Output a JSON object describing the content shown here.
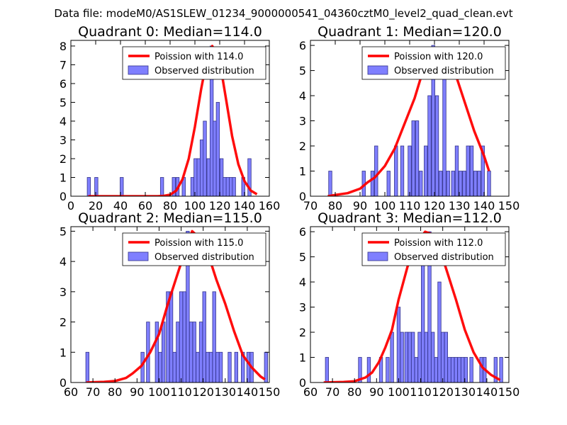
{
  "suptitle": "Data file: modeM0/AS1SLEW_01234_9000000541_04360cztM0_level2_quad_clean.evt",
  "colors": {
    "bar_fill": "#7f7fff",
    "bar_edge": "#33338a",
    "line": "#ff0000"
  },
  "chart_data": [
    {
      "type": "bar",
      "title": "Quadrant 0: Median=114.0",
      "xlim": [
        0,
        160
      ],
      "ylim": [
        0,
        8.3
      ],
      "xticks": [
        0,
        20,
        40,
        60,
        80,
        100,
        120,
        140,
        160
      ],
      "yticks": [
        0,
        1,
        2,
        3,
        4,
        5,
        6,
        7,
        8
      ],
      "legend": {
        "line": "Poission with 114.0",
        "bars": "Observed distribution",
        "position": "top-right"
      },
      "bin_width": 2.6,
      "bins": [
        {
          "x": 14.5,
          "count": 1
        },
        {
          "x": 20.5,
          "count": 1
        },
        {
          "x": 41,
          "count": 1
        },
        {
          "x": 73.5,
          "count": 1
        },
        {
          "x": 83,
          "count": 1
        },
        {
          "x": 86,
          "count": 1
        },
        {
          "x": 91,
          "count": 1
        },
        {
          "x": 98,
          "count": 1
        },
        {
          "x": 100.5,
          "count": 2
        },
        {
          "x": 103,
          "count": 2
        },
        {
          "x": 105.5,
          "count": 3
        },
        {
          "x": 108,
          "count": 4
        },
        {
          "x": 111,
          "count": 2
        },
        {
          "x": 113.5,
          "count": 8
        },
        {
          "x": 116,
          "count": 4
        },
        {
          "x": 118.5,
          "count": 5
        },
        {
          "x": 121.5,
          "count": 2
        },
        {
          "x": 124,
          "count": 1
        },
        {
          "x": 126.5,
          "count": 1
        },
        {
          "x": 129,
          "count": 1
        },
        {
          "x": 131.5,
          "count": 1
        },
        {
          "x": 139,
          "count": 1
        },
        {
          "x": 144,
          "count": 2
        }
      ],
      "poisson": {
        "x": [
          14,
          40,
          70,
          75,
          80,
          85,
          90,
          95,
          100,
          105,
          110,
          114,
          120,
          125,
          130,
          135,
          140,
          145,
          150
        ],
        "y": [
          0,
          0,
          0,
          0.02,
          0.08,
          0.3,
          0.9,
          2,
          3.7,
          5.7,
          7.4,
          8,
          7.2,
          5.2,
          3.2,
          1.7,
          0.8,
          0.3,
          0.1
        ]
      }
    },
    {
      "type": "bar",
      "title": "Quadrant 1: Median=120.0",
      "xlim": [
        70,
        150
      ],
      "ylim": [
        0,
        6.2
      ],
      "xticks": [
        70,
        80,
        90,
        100,
        110,
        120,
        130,
        140,
        150
      ],
      "yticks": [
        0,
        1,
        2,
        3,
        4,
        5,
        6
      ],
      "legend": {
        "line": "Poission with 120.0",
        "bars": "Observed distribution",
        "position": "top-right"
      },
      "bin_width": 1.3,
      "bins": [
        {
          "x": 78,
          "count": 1
        },
        {
          "x": 91.5,
          "count": 1
        },
        {
          "x": 95,
          "count": 1
        },
        {
          "x": 96.5,
          "count": 2
        },
        {
          "x": 101.5,
          "count": 1
        },
        {
          "x": 104.5,
          "count": 2
        },
        {
          "x": 107,
          "count": 2
        },
        {
          "x": 110,
          "count": 2
        },
        {
          "x": 111.5,
          "count": 3
        },
        {
          "x": 113,
          "count": 3
        },
        {
          "x": 114.5,
          "count": 1
        },
        {
          "x": 116.5,
          "count": 2
        },
        {
          "x": 118,
          "count": 4
        },
        {
          "x": 119.5,
          "count": 6
        },
        {
          "x": 121,
          "count": 4
        },
        {
          "x": 122.5,
          "count": 1
        },
        {
          "x": 124,
          "count": 5
        },
        {
          "x": 125.5,
          "count": 1
        },
        {
          "x": 127.5,
          "count": 1
        },
        {
          "x": 129,
          "count": 2
        },
        {
          "x": 130.5,
          "count": 1
        },
        {
          "x": 132,
          "count": 1
        },
        {
          "x": 133.5,
          "count": 2
        },
        {
          "x": 135,
          "count": 2
        },
        {
          "x": 136.5,
          "count": 1
        },
        {
          "x": 138,
          "count": 1
        },
        {
          "x": 139.5,
          "count": 2
        },
        {
          "x": 142,
          "count": 1
        }
      ],
      "poisson": {
        "x": [
          77,
          80,
          85,
          90,
          93,
          96,
          100,
          104,
          108,
          112,
          116,
          120,
          124,
          128,
          132,
          136,
          140,
          142
        ],
        "y": [
          0,
          0.05,
          0.12,
          0.3,
          0.55,
          0.75,
          1.2,
          1.9,
          2.9,
          3.9,
          5.2,
          5.9,
          5.8,
          5.0,
          3.8,
          2.6,
          1.6,
          1.0
        ]
      }
    },
    {
      "type": "bar",
      "title": "Quadrant 2: Median=115.0",
      "xlim": [
        60,
        150
      ],
      "ylim": [
        0,
        5.15
      ],
      "xticks": [
        60,
        70,
        80,
        90,
        100,
        110,
        120,
        130,
        140,
        150
      ],
      "yticks": [
        0,
        1,
        2,
        3,
        4,
        5
      ],
      "legend": {
        "line": "Poission with 115.0",
        "bars": "Observed distribution",
        "position": "top-right"
      },
      "bin_width": 1.45,
      "bins": [
        {
          "x": 67.5,
          "count": 1
        },
        {
          "x": 92.5,
          "count": 1
        },
        {
          "x": 95,
          "count": 2
        },
        {
          "x": 99,
          "count": 2
        },
        {
          "x": 100.5,
          "count": 1
        },
        {
          "x": 102,
          "count": 2
        },
        {
          "x": 104,
          "count": 3
        },
        {
          "x": 105.5,
          "count": 3
        },
        {
          "x": 107,
          "count": 1
        },
        {
          "x": 108.5,
          "count": 2
        },
        {
          "x": 110,
          "count": 3
        },
        {
          "x": 111.5,
          "count": 3
        },
        {
          "x": 113,
          "count": 5
        },
        {
          "x": 114.5,
          "count": 2
        },
        {
          "x": 116,
          "count": 2
        },
        {
          "x": 117.5,
          "count": 1
        },
        {
          "x": 119,
          "count": 2
        },
        {
          "x": 120.5,
          "count": 3
        },
        {
          "x": 122,
          "count": 1
        },
        {
          "x": 123.5,
          "count": 1
        },
        {
          "x": 125,
          "count": 3
        },
        {
          "x": 126.5,
          "count": 1
        },
        {
          "x": 128,
          "count": 1
        },
        {
          "x": 132,
          "count": 1
        },
        {
          "x": 135,
          "count": 1
        },
        {
          "x": 138,
          "count": 1
        },
        {
          "x": 140.5,
          "count": 1
        },
        {
          "x": 142,
          "count": 1
        },
        {
          "x": 148.5,
          "count": 1
        }
      ],
      "poisson": {
        "x": [
          67,
          75,
          80,
          85,
          88,
          92,
          96,
          100,
          104,
          108,
          112,
          115,
          118,
          122,
          126,
          130,
          134,
          138,
          142,
          146,
          148
        ],
        "y": [
          0,
          0.02,
          0.05,
          0.15,
          0.3,
          0.55,
          1.0,
          1.6,
          2.6,
          3.5,
          4.4,
          5.0,
          4.8,
          4.3,
          3.4,
          2.6,
          1.7,
          0.9,
          0.5,
          0.2,
          0.1
        ]
      }
    },
    {
      "type": "bar",
      "title": "Quadrant 3: Median=112.0",
      "xlim": [
        60,
        150
      ],
      "ylim": [
        0,
        6.2
      ],
      "xticks": [
        60,
        70,
        80,
        90,
        100,
        110,
        120,
        130,
        140,
        150
      ],
      "yticks": [
        0,
        1,
        2,
        3,
        4,
        5,
        6
      ],
      "legend": {
        "line": "Poission with 112.0",
        "bars": "Observed distribution",
        "position": "top-right"
      },
      "bin_width": 1.45,
      "bins": [
        {
          "x": 67.5,
          "count": 1
        },
        {
          "x": 82.5,
          "count": 1
        },
        {
          "x": 86.5,
          "count": 1
        },
        {
          "x": 92,
          "count": 1
        },
        {
          "x": 95,
          "count": 1
        },
        {
          "x": 97,
          "count": 2
        },
        {
          "x": 100,
          "count": 3
        },
        {
          "x": 101.5,
          "count": 2
        },
        {
          "x": 103.5,
          "count": 2
        },
        {
          "x": 105,
          "count": 2
        },
        {
          "x": 106.5,
          "count": 2
        },
        {
          "x": 108,
          "count": 1
        },
        {
          "x": 109.5,
          "count": 2
        },
        {
          "x": 111,
          "count": 5
        },
        {
          "x": 112.5,
          "count": 2
        },
        {
          "x": 114,
          "count": 6
        },
        {
          "x": 115.5,
          "count": 2
        },
        {
          "x": 117,
          "count": 1
        },
        {
          "x": 118.5,
          "count": 4
        },
        {
          "x": 120,
          "count": 2
        },
        {
          "x": 121.5,
          "count": 2
        },
        {
          "x": 123,
          "count": 1
        },
        {
          "x": 124.5,
          "count": 1
        },
        {
          "x": 126,
          "count": 1
        },
        {
          "x": 127.5,
          "count": 1
        },
        {
          "x": 129,
          "count": 1
        },
        {
          "x": 130.5,
          "count": 1
        },
        {
          "x": 133,
          "count": 1
        },
        {
          "x": 137.5,
          "count": 1
        },
        {
          "x": 139,
          "count": 1
        },
        {
          "x": 144,
          "count": 1
        },
        {
          "x": 146.5,
          "count": 1
        }
      ],
      "poisson": {
        "x": [
          66,
          75,
          80,
          85,
          88,
          91,
          94,
          97,
          100,
          104,
          108,
          112,
          115,
          118,
          122,
          126,
          130,
          134,
          138,
          142,
          146
        ],
        "y": [
          0,
          0.02,
          0.05,
          0.2,
          0.4,
          0.8,
          1.4,
          2.1,
          3.3,
          4.6,
          5.5,
          6.0,
          5.9,
          5.5,
          4.4,
          3.3,
          2.1,
          1.2,
          0.6,
          0.3,
          0.1
        ]
      }
    }
  ]
}
